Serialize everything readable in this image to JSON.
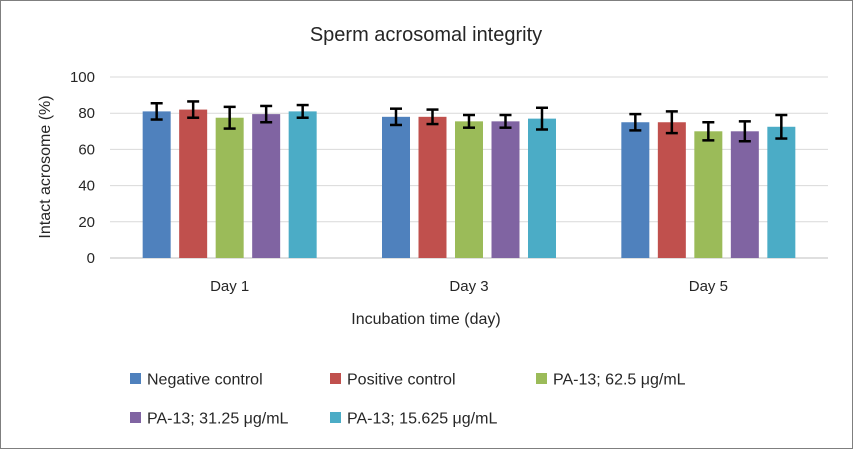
{
  "chart_data": {
    "type": "bar",
    "title": "Sperm acrosomal integrity",
    "xlabel": "Incubation time (day)",
    "ylabel": "Intact acrosome  (%)",
    "categories": [
      "Day 1",
      "Day 3",
      "Day 5"
    ],
    "ylim": [
      0,
      100
    ],
    "yticks": [
      "0",
      "20",
      "40",
      "60",
      "80",
      "100"
    ],
    "grid": true,
    "legend_position": "bottom",
    "series": [
      {
        "name": "Negative control",
        "color": "#4f81bd",
        "values": [
          81,
          78,
          75
        ],
        "errors": [
          4.5,
          4.5,
          4.5
        ]
      },
      {
        "name": "Positive control",
        "color": "#c0504d",
        "values": [
          82,
          78,
          75
        ],
        "errors": [
          4.5,
          4,
          6
        ]
      },
      {
        "name": "PA-13; 62.5 μg/mL",
        "color": "#9bbb59",
        "values": [
          77.5,
          75.5,
          70
        ],
        "errors": [
          6,
          3.5,
          5
        ]
      },
      {
        "name": "PA-13; 31.25 μg/mL",
        "color": "#8064a2",
        "values": [
          79.5,
          75.5,
          70
        ],
        "errors": [
          4.5,
          3.5,
          5.5
        ]
      },
      {
        "name": "PA-13; 15.625 μg/mL",
        "color": "#4bacc6",
        "values": [
          81,
          77,
          72.5
        ],
        "errors": [
          3.5,
          6,
          6.5
        ]
      }
    ]
  }
}
